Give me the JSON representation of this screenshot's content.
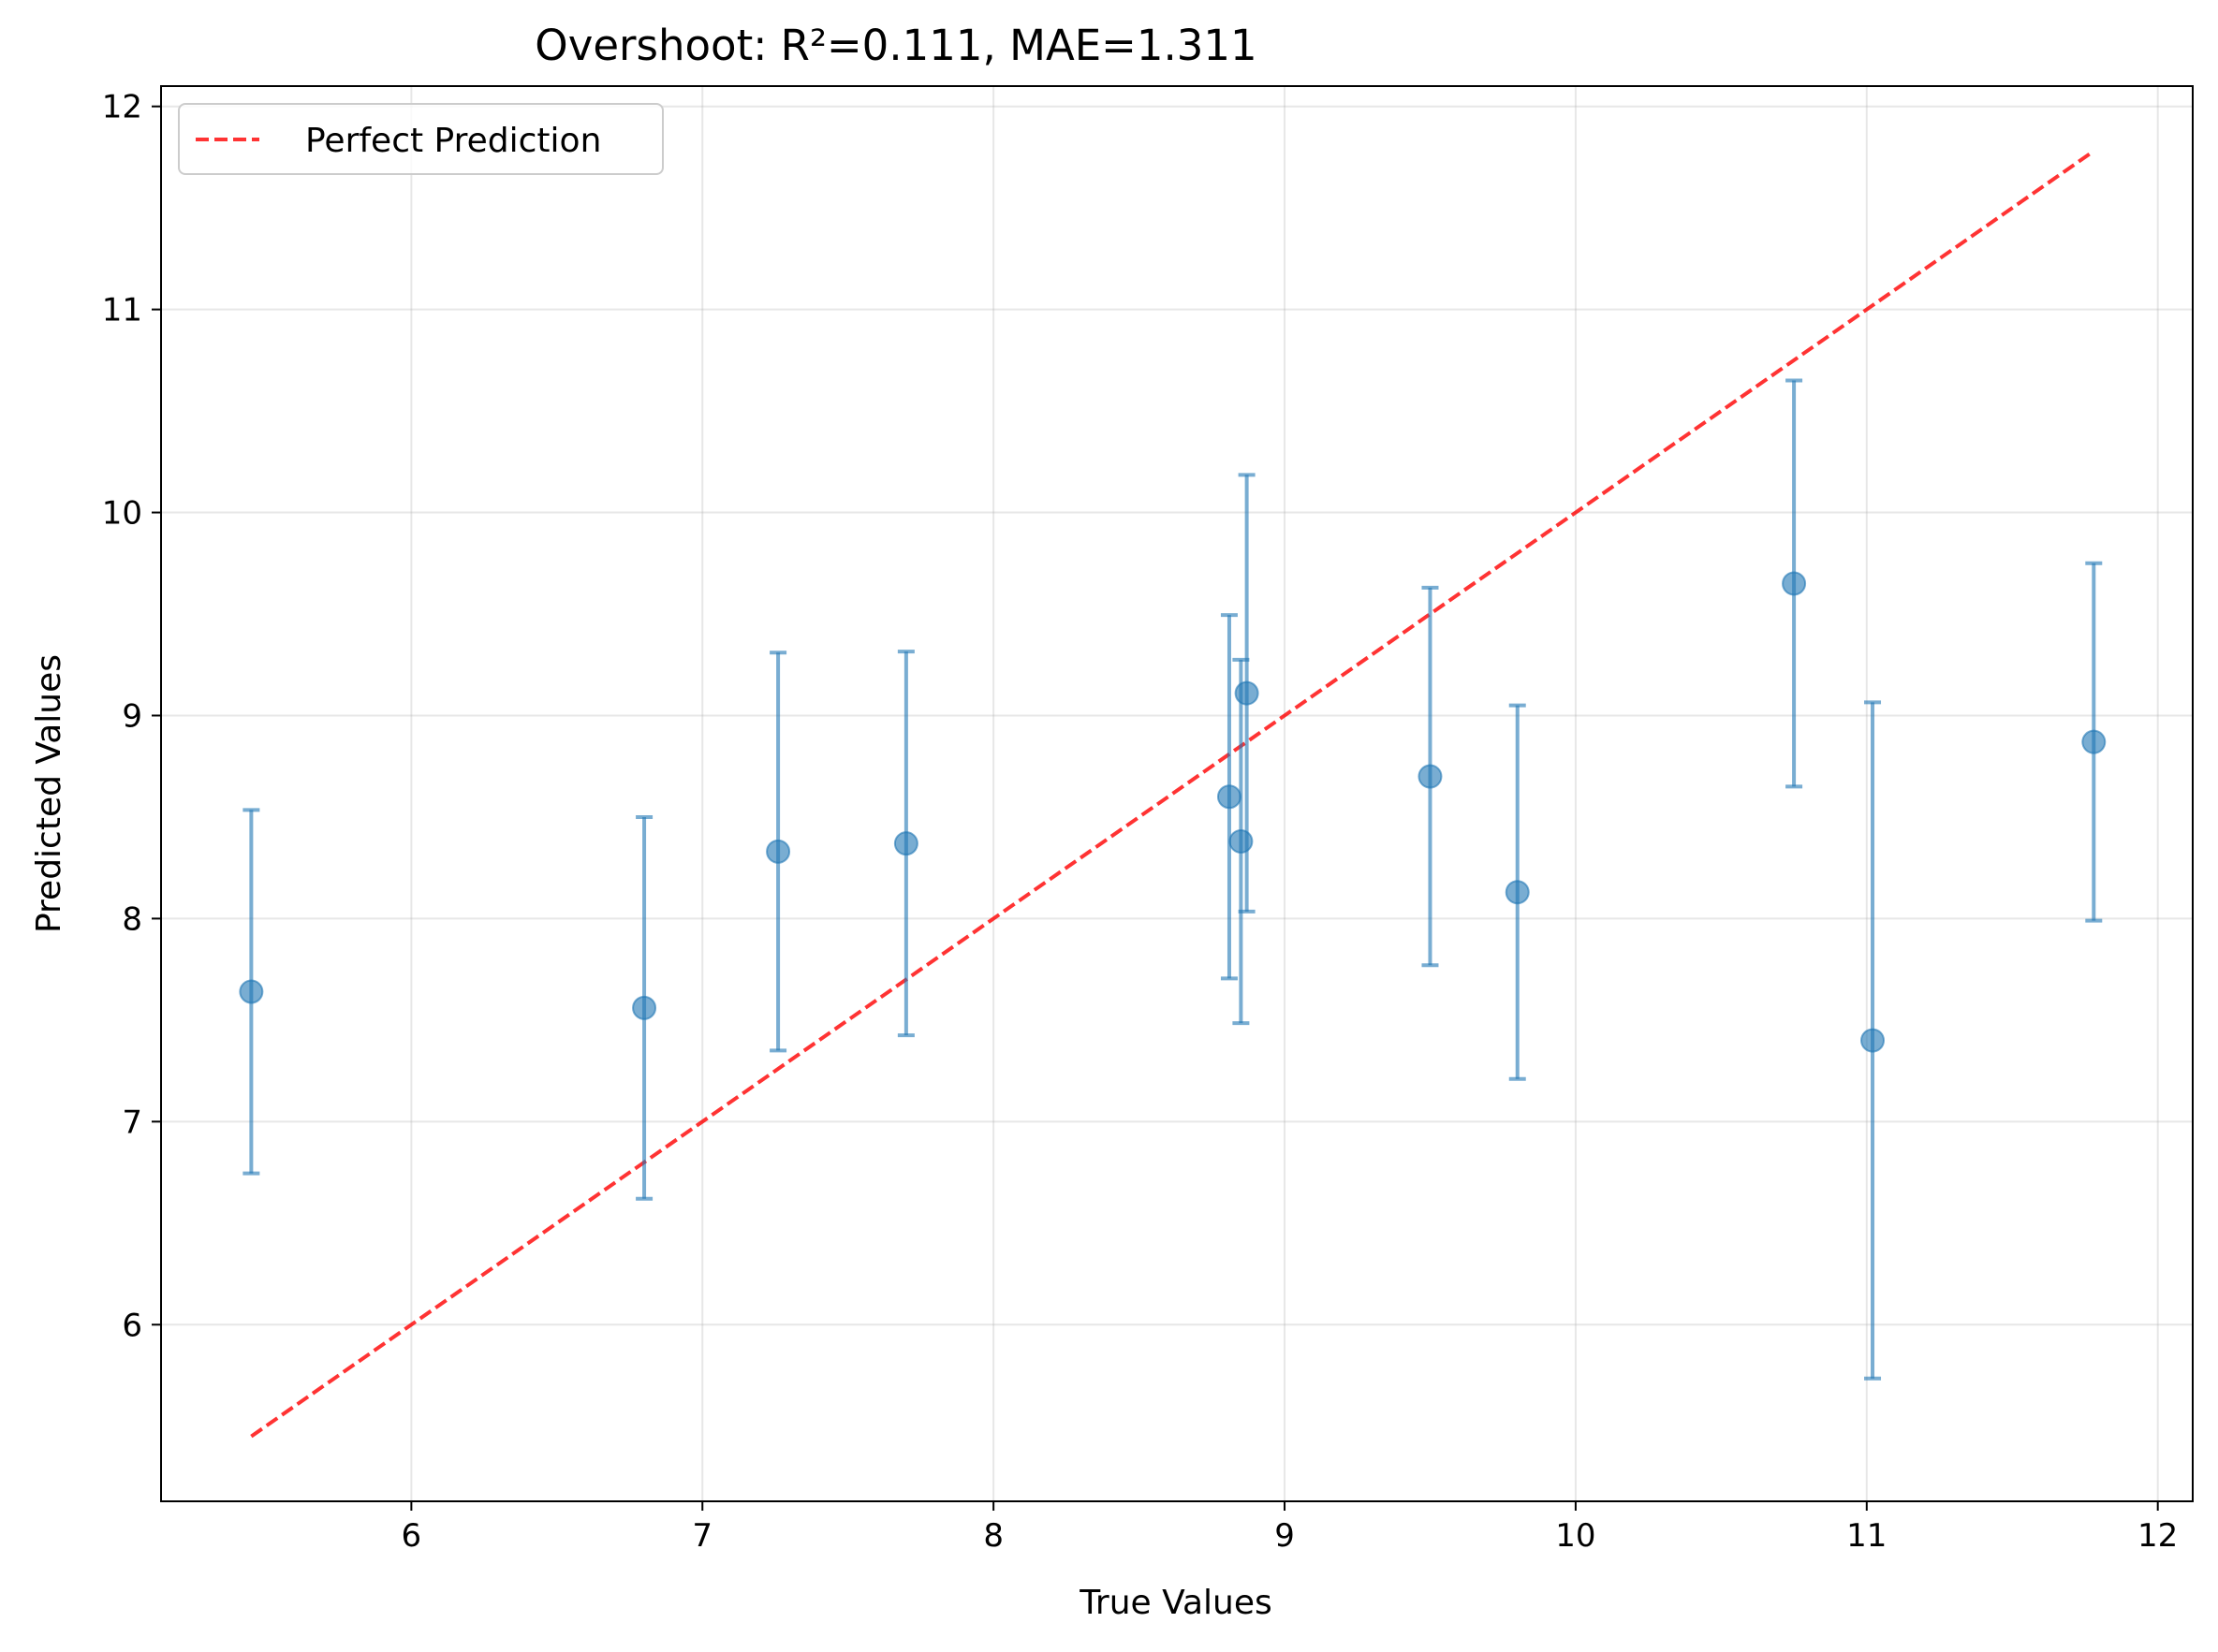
{
  "chart_data": {
    "type": "scatter",
    "title": "Overshoot: R²=0.111, MAE=1.311",
    "xlabel": "True Values",
    "ylabel": "Predicted Values",
    "xlim": [
      5.14,
      12.12
    ],
    "ylim": [
      5.13,
      12.1
    ],
    "xticks": [
      6,
      7,
      8,
      9,
      10,
      11,
      12
    ],
    "yticks": [
      6,
      7,
      8,
      9,
      10,
      11,
      12
    ],
    "grid": true,
    "legend": {
      "position": "top-left",
      "entries": [
        "Perfect Prediction"
      ]
    },
    "colors": {
      "points": "#1f77b4",
      "reference_line": "#ff0000"
    },
    "series": [
      {
        "kind": "errorbar-scatter",
        "points": [
          {
            "x": 5.45,
            "y": 7.64,
            "err": 0.895
          },
          {
            "x": 6.8,
            "y": 7.56,
            "err": 0.94
          },
          {
            "x": 7.26,
            "y": 8.33,
            "err": 0.98
          },
          {
            "x": 7.7,
            "y": 8.37,
            "err": 0.945
          },
          {
            "x": 8.81,
            "y": 8.6,
            "err": 0.895
          },
          {
            "x": 8.85,
            "y": 8.38,
            "err": 0.895
          },
          {
            "x": 8.87,
            "y": 9.11,
            "err": 1.075
          },
          {
            "x": 9.5,
            "y": 8.7,
            "err": 0.93
          },
          {
            "x": 9.8,
            "y": 8.13,
            "err": 0.92
          },
          {
            "x": 10.75,
            "y": 9.65,
            "err": 1.0
          },
          {
            "x": 11.02,
            "y": 7.4,
            "err": 1.665
          },
          {
            "x": 11.78,
            "y": 8.87,
            "err": 0.88
          }
        ]
      },
      {
        "name": "Perfect Prediction",
        "kind": "line",
        "style": "dashed",
        "x": [
          5.45,
          11.78
        ],
        "y": [
          5.45,
          11.78
        ]
      }
    ]
  }
}
